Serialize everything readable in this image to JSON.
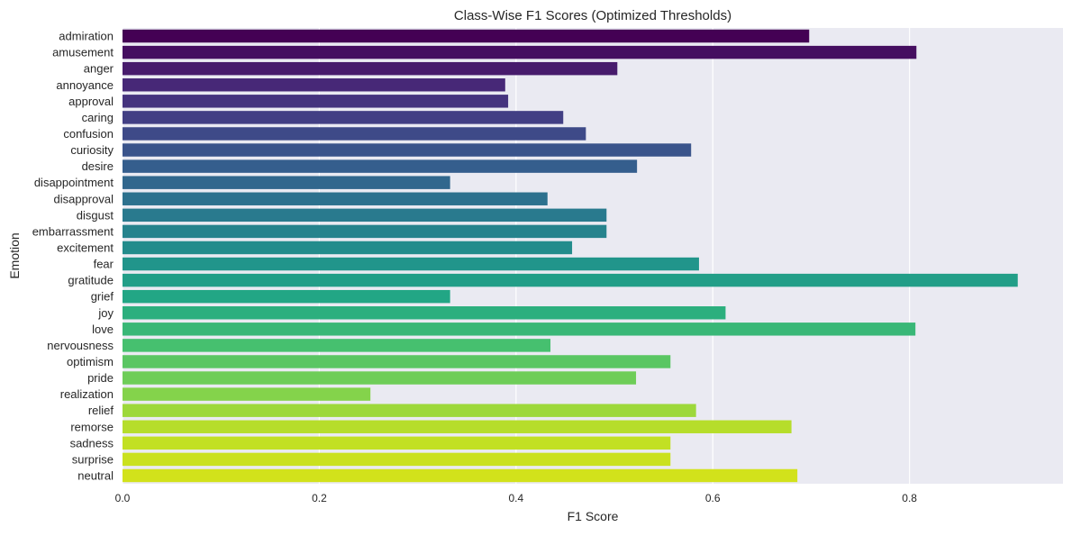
{
  "chart_data": {
    "type": "bar",
    "orientation": "horizontal",
    "title": "Class-Wise F1 Scores (Optimized Thresholds)",
    "xlabel": "F1 Score",
    "ylabel": "Emotion",
    "xlim": [
      0,
      0.956
    ],
    "xticks": [
      "0.0",
      "0.2",
      "0.4",
      "0.6",
      "0.8"
    ],
    "grid": true,
    "background": "#eaeaf2",
    "palette": "viridis",
    "categories": [
      "admiration",
      "amusement",
      "anger",
      "annoyance",
      "approval",
      "caring",
      "confusion",
      "curiosity",
      "desire",
      "disappointment",
      "disapproval",
      "disgust",
      "embarrassment",
      "excitement",
      "fear",
      "gratitude",
      "grief",
      "joy",
      "love",
      "nervousness",
      "optimism",
      "pride",
      "realization",
      "relief",
      "remorse",
      "sadness",
      "surprise",
      "neutral"
    ],
    "values": [
      0.698,
      0.807,
      0.503,
      0.389,
      0.392,
      0.448,
      0.471,
      0.578,
      0.523,
      0.333,
      0.432,
      0.492,
      0.492,
      0.457,
      0.586,
      0.91,
      0.333,
      0.613,
      0.806,
      0.435,
      0.557,
      0.522,
      0.252,
      0.583,
      0.68,
      0.557,
      0.557,
      0.686
    ]
  }
}
